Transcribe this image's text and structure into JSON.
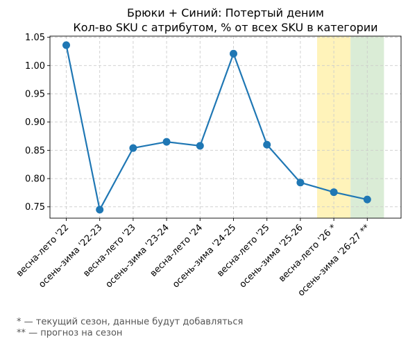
{
  "chart_data": {
    "type": "line",
    "title": "Брюки + Синий: Потертый деним",
    "subtitle": "Кол-во SKU с атрибутом, % от всех SKU в категории",
    "xlabel": "",
    "ylabel": "",
    "categories": [
      "весна-лето '22",
      "осень-зима '22-23",
      "весна-лето '23",
      "осень-зима '23-24",
      "весна-лето '24",
      "осень-зима '24-25",
      "весна-лето '25",
      "осень-зима '25-26",
      "весна-лето '26 *",
      "осень-зима '26-27 **"
    ],
    "series": [
      {
        "values": [
          1.036,
          0.745,
          0.854,
          0.865,
          0.858,
          1.021,
          0.86,
          0.793,
          0.776,
          0.763
        ]
      }
    ],
    "ylim": [
      0.73,
      1.052
    ],
    "yticks": [
      "0.75",
      "0.80",
      "0.85",
      "0.90",
      "0.95",
      "1.00",
      "1.05"
    ],
    "grid": true,
    "line_color": "#1f77b4",
    "highlights": [
      {
        "category_index": 8,
        "color": "#fff2b3"
      },
      {
        "category_index": 9,
        "color": "#d6ead2"
      }
    ]
  },
  "footnotes": [
    "* — текущий сезон, данные будут добавляться",
    "** — прогноз на сезон"
  ]
}
